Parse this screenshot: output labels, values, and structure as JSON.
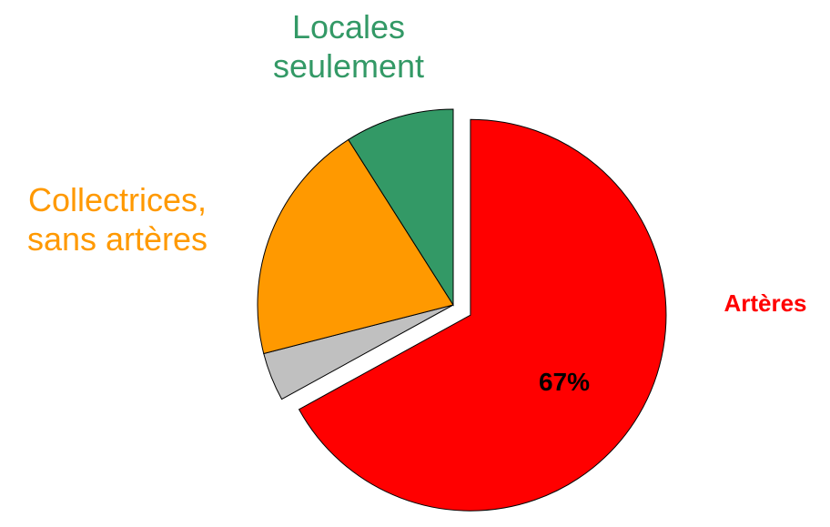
{
  "chart_data": {
    "type": "pie",
    "categories": [
      "Artères",
      null,
      "Collectrices, sans artères",
      "Locales seulement"
    ],
    "values": [
      67,
      4,
      20,
      9
    ],
    "value_labels": [
      "67%",
      null,
      null,
      null
    ],
    "colors": [
      "#ff0000",
      "#c0c0c0",
      "#ff9900",
      "#339966"
    ],
    "explode": [
      true,
      false,
      false,
      false
    ]
  }
}
